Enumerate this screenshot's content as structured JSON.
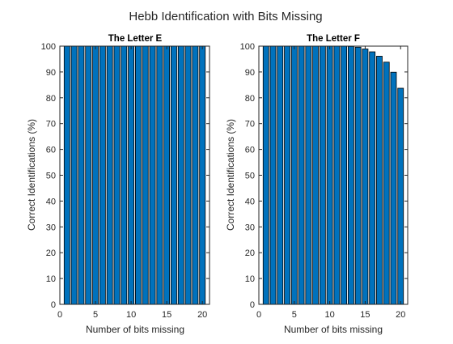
{
  "figure": {
    "title": "Hebb Identification with Bits Missing"
  },
  "style": {
    "bar_color": "#0072BD",
    "bar_edge": "#000000",
    "axis_color": "#262626"
  },
  "chart_data": [
    {
      "type": "bar",
      "title": "The Letter E",
      "xlabel": "Number of bits missing",
      "ylabel": "Correct Identifications (%)",
      "xlim": [
        0,
        21
      ],
      "ylim": [
        0,
        100
      ],
      "xticks": [
        0,
        5,
        10,
        15,
        20
      ],
      "yticks": [
        0,
        10,
        20,
        30,
        40,
        50,
        60,
        70,
        80,
        90,
        100
      ],
      "x": [
        1,
        2,
        3,
        4,
        5,
        6,
        7,
        8,
        9,
        10,
        11,
        12,
        13,
        14,
        15,
        16,
        17,
        18,
        19,
        20
      ],
      "values": [
        100,
        100,
        100,
        100,
        100,
        100,
        100,
        100,
        100,
        100,
        100,
        100,
        100,
        100,
        100,
        100,
        100,
        100,
        100,
        100
      ]
    },
    {
      "type": "bar",
      "title": "The Letter F",
      "xlabel": "Number of bits missing",
      "ylabel": "Correct Identifications (%)",
      "xlim": [
        0,
        21
      ],
      "ylim": [
        0,
        100
      ],
      "xticks": [
        0,
        5,
        10,
        15,
        20
      ],
      "yticks": [
        0,
        10,
        20,
        30,
        40,
        50,
        60,
        70,
        80,
        90,
        100
      ],
      "x": [
        1,
        2,
        3,
        4,
        5,
        6,
        7,
        8,
        9,
        10,
        11,
        12,
        13,
        14,
        15,
        16,
        17,
        18,
        19,
        20
      ],
      "values": [
        100,
        100,
        100,
        100,
        100,
        100,
        100,
        100,
        100,
        100,
        100,
        100,
        99.9,
        99.6,
        98.9,
        97.8,
        96.1,
        93.8,
        89.9,
        83.7
      ]
    }
  ]
}
